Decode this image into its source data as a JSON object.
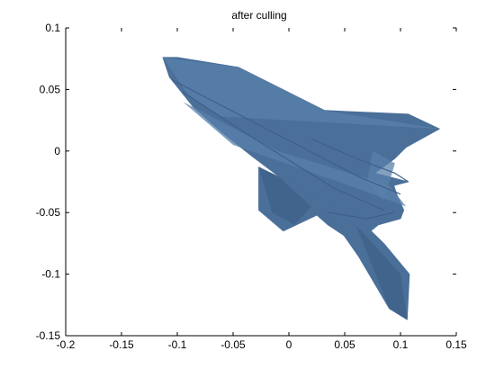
{
  "chart_data": {
    "type": "area",
    "title": "after culling",
    "xlabel": "",
    "ylabel": "",
    "xlim": [
      -0.2,
      0.15
    ],
    "ylim": [
      -0.15,
      0.1
    ],
    "xticks": [
      -0.2,
      -0.15,
      -0.1,
      -0.05,
      0,
      0.05,
      0.1,
      0.15
    ],
    "xtick_labels": [
      "-0.2",
      "-0.15",
      "-0.1",
      "-0.05",
      "0",
      "0.05",
      "0.1",
      "0.15"
    ],
    "yticks": [
      0.1,
      0.05,
      0,
      -0.05,
      -0.1,
      -0.15
    ],
    "ytick_labels": [
      "0.1",
      "0.05",
      "0",
      "-0.05",
      "-0.1",
      "-0.15"
    ],
    "grid": false,
    "fill_color": "#4a6f99",
    "shade_dark": "#3f6088",
    "shade_light": "#5a80ab",
    "shapes": [
      {
        "role": "body",
        "x": [
          -0.113,
          -0.1,
          -0.045,
          0.032,
          0.107,
          0.135,
          0.105,
          0.095,
          0.077,
          0.107,
          0.094,
          0.097,
          0.103,
          0.1,
          0.08,
          0.06,
          0.035,
          0.02,
          0.005,
          -0.01,
          -0.032,
          -0.06,
          -0.085,
          -0.107
        ],
        "y": [
          0.076,
          0.076,
          0.068,
          0.033,
          0.03,
          0.018,
          0.003,
          -0.006,
          -0.018,
          -0.025,
          -0.028,
          -0.036,
          -0.048,
          -0.055,
          -0.06,
          -0.075,
          -0.06,
          -0.048,
          -0.033,
          -0.02,
          -0.005,
          0.015,
          0.035,
          0.06
        ]
      },
      {
        "role": "lower-wing",
        "x": [
          -0.027,
          0.005,
          0.025,
          0.03,
          -0.005,
          -0.027
        ],
        "y": [
          -0.013,
          -0.028,
          -0.038,
          -0.05,
          -0.065,
          -0.048
        ]
      },
      {
        "role": "tail-fin",
        "x": [
          0.035,
          0.06,
          0.085,
          0.108,
          0.106,
          0.09,
          0.062,
          0.045
        ],
        "y": [
          -0.043,
          -0.053,
          -0.075,
          -0.1,
          -0.137,
          -0.128,
          -0.085,
          -0.063
        ]
      }
    ],
    "highlights": [
      {
        "x": [
          -0.113,
          -0.045,
          0.032,
          0.135,
          -0.06,
          -0.09
        ],
        "y": [
          0.076,
          0.068,
          0.033,
          0.018,
          0.028,
          0.045
        ],
        "tone": "light"
      },
      {
        "x": [
          -0.095,
          -0.01,
          0.09,
          0.105,
          0.06,
          -0.05
        ],
        "y": [
          0.04,
          0.0,
          -0.028,
          -0.045,
          -0.03,
          0.005
        ],
        "tone": "light"
      },
      {
        "x": [
          -0.027,
          -0.01,
          0.02,
          0.005,
          -0.015
        ],
        "y": [
          -0.013,
          -0.02,
          -0.045,
          -0.06,
          -0.05
        ],
        "tone": "dark"
      },
      {
        "x": [
          0.06,
          0.1,
          0.106,
          0.09
        ],
        "y": [
          -0.06,
          -0.1,
          -0.137,
          -0.128
        ],
        "tone": "dark"
      },
      {
        "x": [
          0.075,
          0.095,
          0.085,
          0.07
        ],
        "y": [
          0.0,
          -0.01,
          -0.04,
          -0.025
        ],
        "tone": "light"
      }
    ],
    "edges": [
      {
        "x": [
          -0.105,
          -0.035,
          0.065,
          0.1
        ],
        "y": [
          0.058,
          0.025,
          -0.022,
          -0.035
        ]
      },
      {
        "x": [
          -0.095,
          -0.04,
          0.04,
          0.085
        ],
        "y": [
          0.048,
          0.015,
          -0.03,
          -0.048
        ]
      },
      {
        "x": [
          0.02,
          0.06,
          0.095,
          0.107
        ],
        "y": [
          0.01,
          -0.006,
          -0.018,
          -0.025
        ]
      },
      {
        "x": [
          0.035,
          0.07,
          0.094
        ],
        "y": [
          -0.05,
          -0.055,
          -0.05
        ]
      }
    ]
  }
}
